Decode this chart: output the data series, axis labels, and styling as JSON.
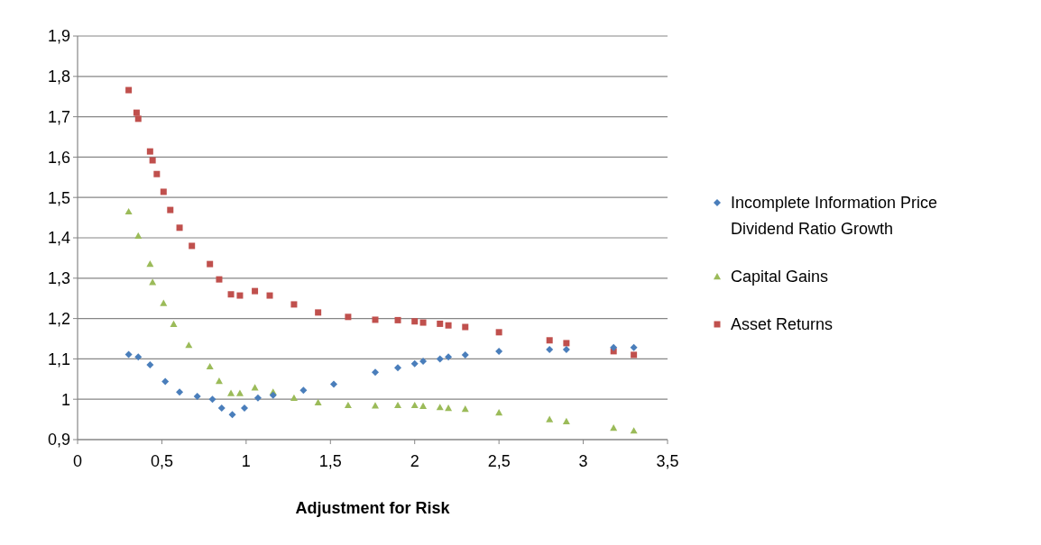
{
  "chart_data": {
    "type": "scatter",
    "xlabel": "Adjustment for Risk",
    "xlim": [
      0,
      3.5
    ],
    "xticks": [
      0,
      {
        "value": 0.5,
        "label": "0,5"
      },
      1,
      {
        "value": 1.5,
        "label": "1,5"
      },
      2,
      {
        "value": 2.5,
        "label": "2,5"
      },
      3,
      {
        "value": 3.5,
        "label": "3,5"
      }
    ],
    "ylim": [
      0.9,
      1.9
    ],
    "yticks": [
      {
        "value": 0.9,
        "label": "0,9"
      },
      1,
      {
        "value": 1.1,
        "label": "1,1"
      },
      {
        "value": 1.2,
        "label": "1,2"
      },
      {
        "value": 1.3,
        "label": "1,3"
      },
      {
        "value": 1.4,
        "label": "1,4"
      },
      {
        "value": 1.5,
        "label": "1,5"
      },
      {
        "value": 1.6,
        "label": "1,6"
      },
      {
        "value": 1.7,
        "label": "1,7"
      },
      {
        "value": 1.8,
        "label": "1,8"
      },
      {
        "value": 1.9,
        "label": "1,9"
      }
    ],
    "grid": "y",
    "legend": "right",
    "series": [
      {
        "name": "Incomplete Information Price Dividend Ratio Growth",
        "color": "#4a7ebb",
        "marker": "diamond",
        "x": [
          0.303,
          0.36,
          0.43,
          0.52,
          0.605,
          0.71,
          0.8,
          0.855,
          0.918,
          0.99,
          1.07,
          1.16,
          1.34,
          1.52,
          1.766,
          1.9,
          2.0,
          2.05,
          2.15,
          2.2,
          2.3,
          2.5,
          2.8,
          2.9,
          3.18,
          3.3
        ],
        "values": [
          1.111,
          1.105,
          1.085,
          1.044,
          1.018,
          1.007,
          1.0,
          0.978,
          0.962,
          0.978,
          1.003,
          1.01,
          1.022,
          1.037,
          1.067,
          1.078,
          1.088,
          1.094,
          1.1,
          1.105,
          1.11,
          1.119,
          1.123,
          1.123,
          1.128,
          1.128
        ]
      },
      {
        "name": "Capital Gains",
        "color": "#9bbb59",
        "marker": "triangle",
        "x": [
          0.303,
          0.36,
          0.43,
          0.445,
          0.51,
          0.57,
          0.66,
          0.785,
          0.84,
          0.91,
          0.963,
          1.052,
          1.16,
          1.284,
          1.427,
          1.605,
          1.766,
          1.9,
          2.0,
          2.05,
          2.15,
          2.2,
          2.3,
          2.5,
          2.8,
          2.9,
          3.18,
          3.3
        ],
        "values": [
          1.465,
          1.405,
          1.335,
          1.29,
          1.238,
          1.186,
          1.134,
          1.081,
          1.045,
          1.015,
          1.015,
          1.029,
          1.018,
          1.003,
          0.992,
          0.985,
          0.984,
          0.985,
          0.985,
          0.983,
          0.98,
          0.978,
          0.976,
          0.967,
          0.95,
          0.945,
          0.929,
          0.922
        ]
      },
      {
        "name": "Asset Returns",
        "color": "#c0504d",
        "marker": "square",
        "x": [
          0.303,
          0.35,
          0.36,
          0.43,
          0.445,
          0.47,
          0.51,
          0.55,
          0.605,
          0.678,
          0.785,
          0.84,
          0.91,
          0.963,
          1.052,
          1.14,
          1.284,
          1.427,
          1.605,
          1.766,
          1.9,
          2.0,
          2.05,
          2.15,
          2.2,
          2.3,
          2.5,
          2.8,
          2.9,
          3.18,
          3.3
        ],
        "values": [
          1.766,
          1.71,
          1.695,
          1.614,
          1.592,
          1.558,
          1.514,
          1.469,
          1.425,
          1.38,
          1.335,
          1.297,
          1.26,
          1.257,
          1.268,
          1.257,
          1.235,
          1.215,
          1.204,
          1.197,
          1.196,
          1.193,
          1.19,
          1.187,
          1.183,
          1.179,
          1.166,
          1.146,
          1.139,
          1.119,
          1.11
        ]
      }
    ]
  }
}
